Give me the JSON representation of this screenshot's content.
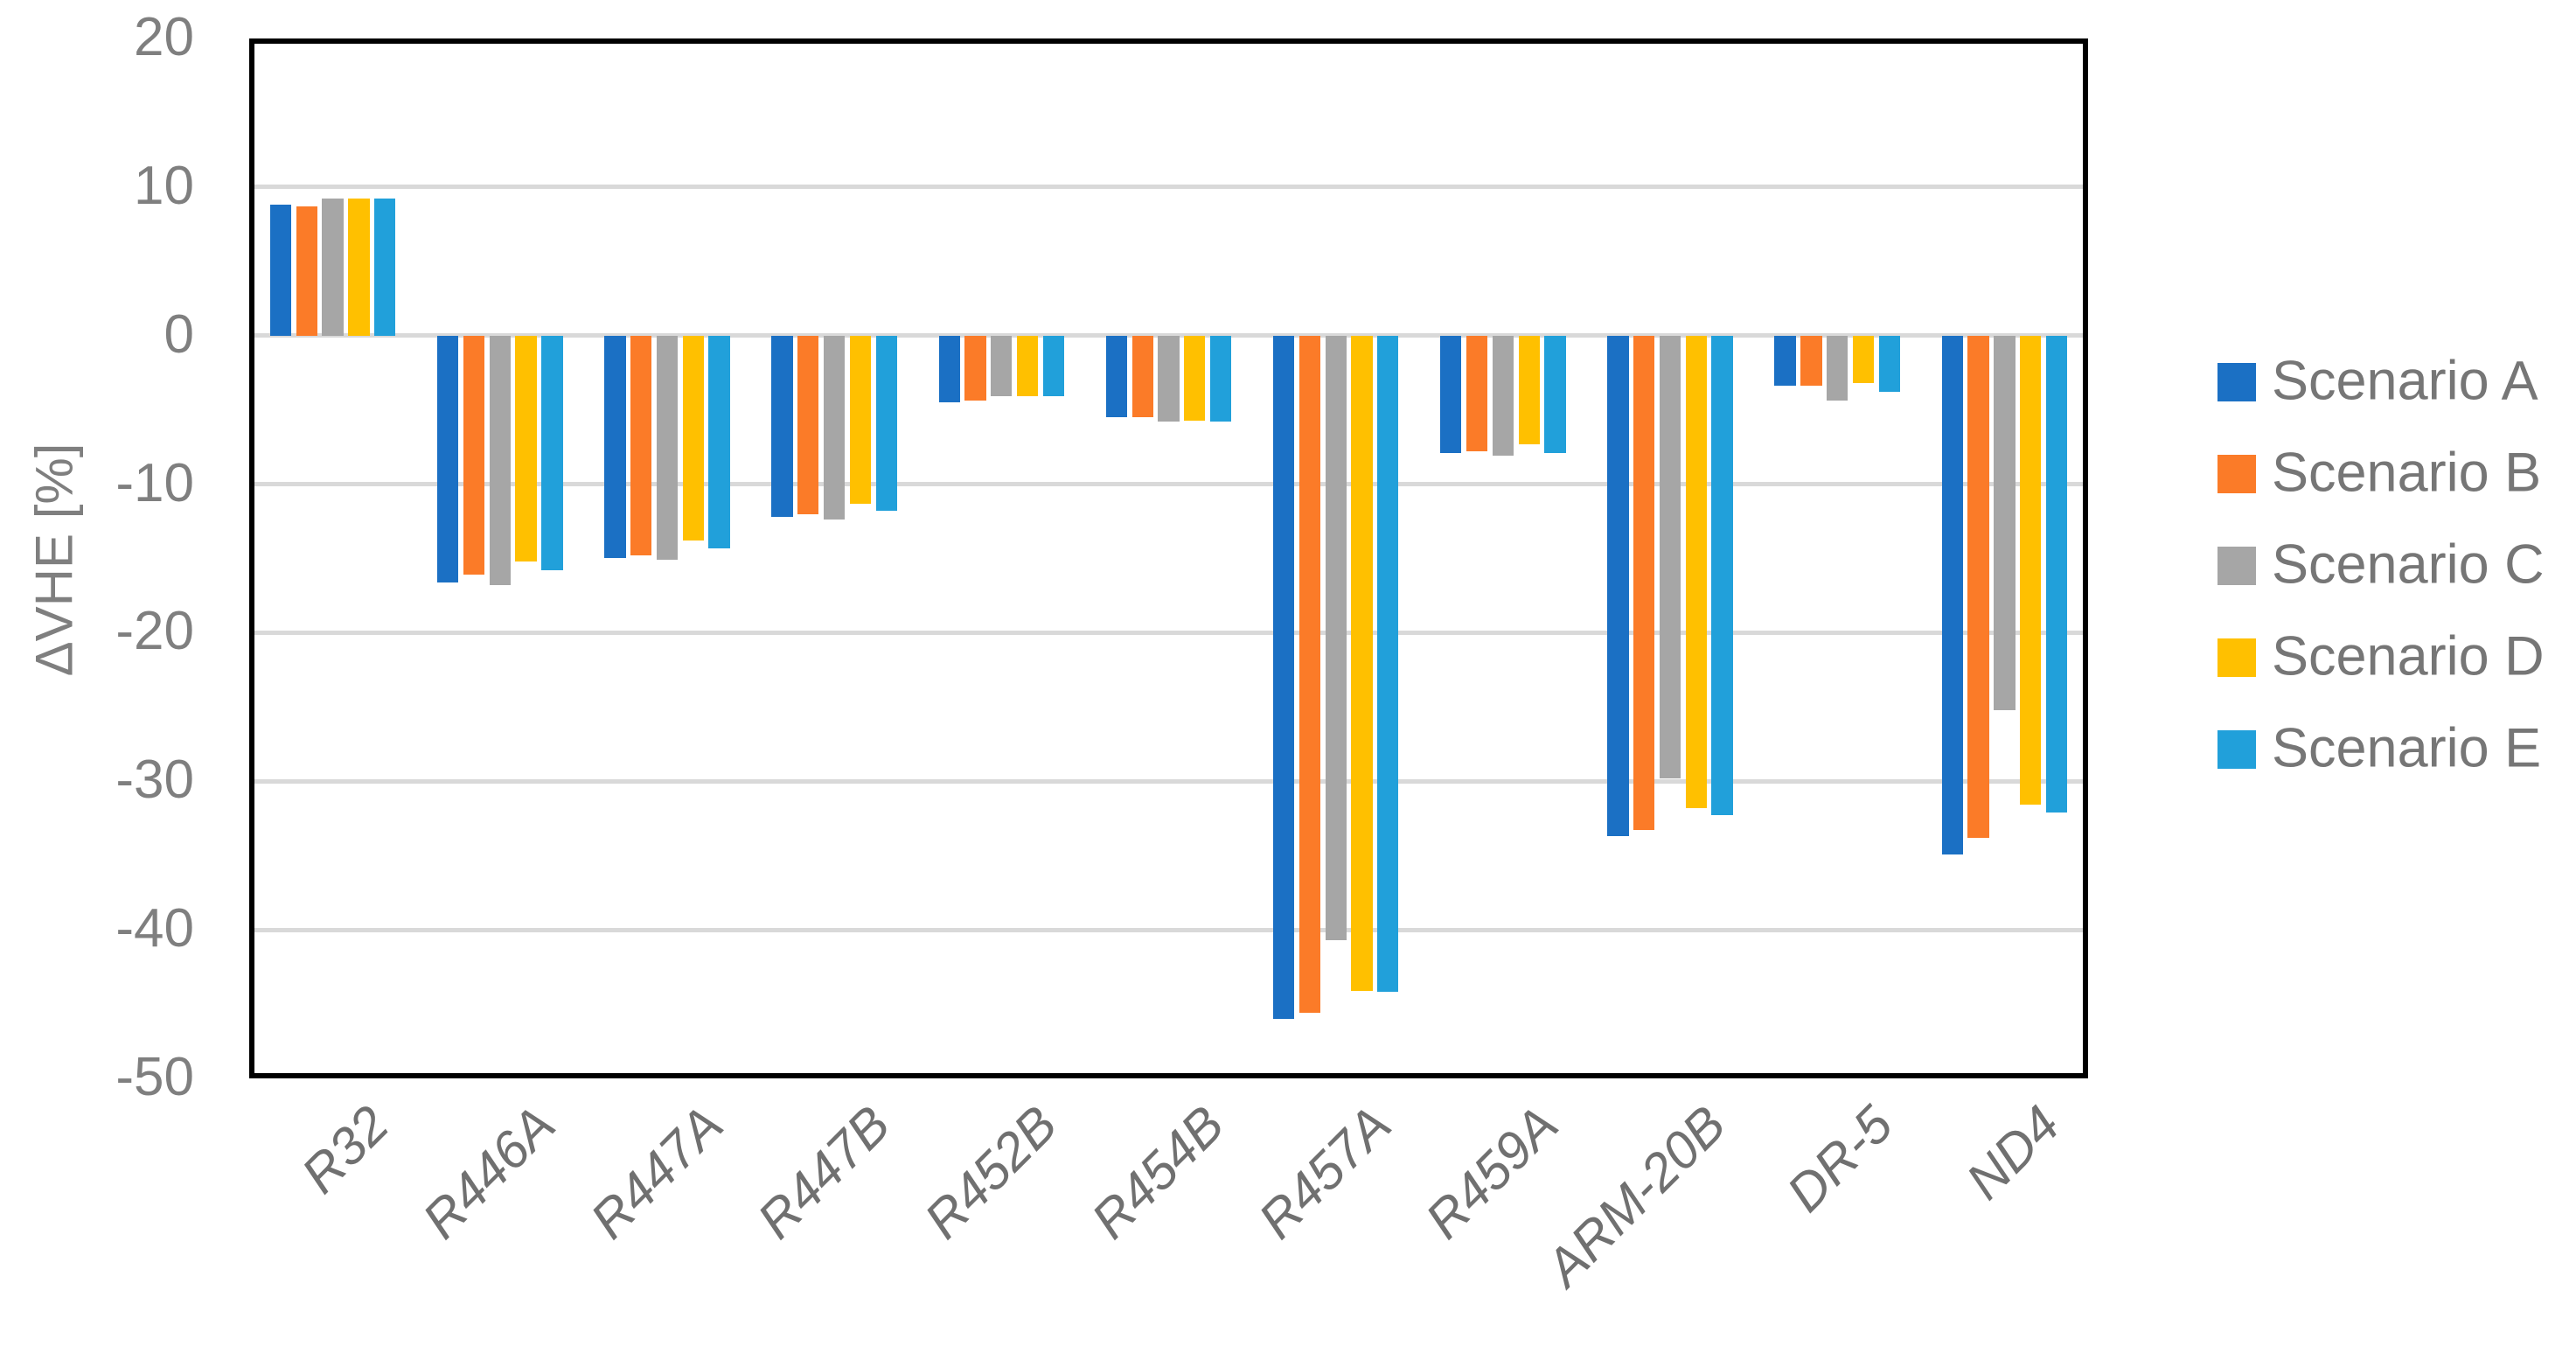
{
  "y_axis": {
    "title": "ΔVHE [%]",
    "tick_labels": [
      "20",
      "10",
      "0",
      "-10",
      "-20",
      "-30",
      "-40",
      "-50"
    ]
  },
  "legend": {
    "entries": [
      {
        "label": "Scenario A",
        "color": "#1b70c4"
      },
      {
        "label": "Scenario B",
        "color": "#fb7b28"
      },
      {
        "label": "Scenario C",
        "color": "#a6a6a6"
      },
      {
        "label": "Scenario D",
        "color": "#ffc000"
      },
      {
        "label": "Scenario E",
        "color": "#21a0da"
      }
    ]
  },
  "chart_data": {
    "type": "bar",
    "title": "",
    "xlabel": "",
    "ylabel": "ΔVHE [%]",
    "ylim": [
      -50,
      20
    ],
    "ytick_step": 10,
    "grid": true,
    "legend_position": "right",
    "categories": [
      "R32",
      "R446A",
      "R447A",
      "R447B",
      "R452B",
      "R454B",
      "R457A",
      "R459A",
      "ARM-20B",
      "DR-5",
      "ND4"
    ],
    "series": [
      {
        "name": "Scenario A",
        "color": "#1b70c4",
        "values": [
          8.8,
          -16.6,
          -15.0,
          -12.2,
          -4.5,
          -5.5,
          -46.0,
          -7.9,
          -33.7,
          -3.4,
          -34.9
        ]
      },
      {
        "name": "Scenario B",
        "color": "#fb7b28",
        "values": [
          8.7,
          -16.1,
          -14.8,
          -12.0,
          -4.4,
          -5.5,
          -45.6,
          -7.8,
          -33.3,
          -3.4,
          -33.8
        ]
      },
      {
        "name": "Scenario C",
        "color": "#a6a6a6",
        "values": [
          9.2,
          -16.8,
          -15.1,
          -12.4,
          -4.1,
          -5.8,
          -40.7,
          -8.1,
          -29.8,
          -4.4,
          -25.2
        ]
      },
      {
        "name": "Scenario D",
        "color": "#ffc000",
        "values": [
          9.2,
          -15.2,
          -13.8,
          -11.3,
          -4.1,
          -5.7,
          -44.1,
          -7.3,
          -31.8,
          -3.2,
          -31.6
        ]
      },
      {
        "name": "Scenario E",
        "color": "#21a0da",
        "values": [
          9.2,
          -15.8,
          -14.3,
          -11.8,
          -4.1,
          -5.8,
          -44.2,
          -7.9,
          -32.3,
          -3.8,
          -32.1
        ]
      }
    ]
  }
}
